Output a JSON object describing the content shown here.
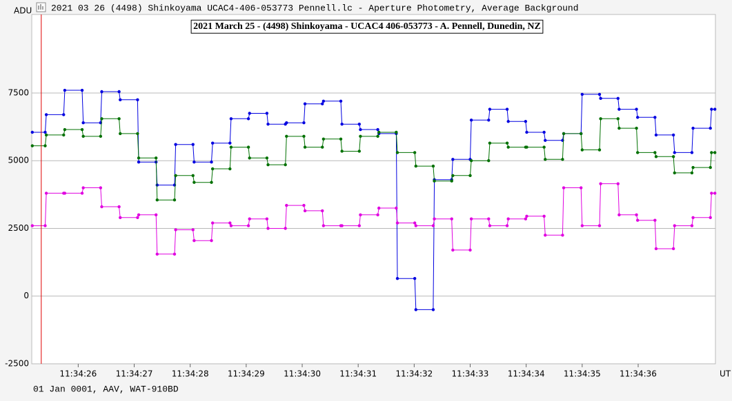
{
  "window_title": "2021 03 26 (4498) Shinkoyama UCAC4-406-053773 Pennell.lc - Aperture Photometry, Average Background",
  "footer": "01 Jan 0001, AAV, WAT-910BD",
  "chart_data": {
    "type": "line",
    "title": "2021 March 25 - (4498) Shinkoyama - UCAC4 406-053773 - A. Pennell, Dunedin, NZ",
    "y_label": "ADU",
    "x_label": "UT",
    "xlim": [
      25.17,
      37.38
    ],
    "ylim": [
      -2500,
      10400
    ],
    "xticks": [
      {
        "value": 26,
        "label": "11:34:26"
      },
      {
        "value": 27,
        "label": "11:34:27"
      },
      {
        "value": 28,
        "label": "11:34:28"
      },
      {
        "value": 29,
        "label": "11:34:29"
      },
      {
        "value": 30,
        "label": "11:34:30"
      },
      {
        "value": 31,
        "label": "11:34:31"
      },
      {
        "value": 32,
        "label": "11:34:32"
      },
      {
        "value": 33,
        "label": "11:34:33"
      },
      {
        "value": 34,
        "label": "11:34:34"
      },
      {
        "value": 35,
        "label": "11:34:35"
      },
      {
        "value": 36,
        "label": "11:34:36"
      }
    ],
    "yticks": [
      -2500,
      0,
      2500,
      5000,
      7500
    ],
    "grid": true,
    "marker_x": 25.34,
    "marker_color": "#e00000",
    "x": [
      25.18,
      25.41,
      25.43,
      25.74,
      25.76,
      26.07,
      26.09,
      26.4,
      26.42,
      26.73,
      26.75,
      27.06,
      27.08,
      27.39,
      27.41,
      27.72,
      27.74,
      28.05,
      28.07,
      28.38,
      28.4,
      28.71,
      28.73,
      29.04,
      29.06,
      29.37,
      29.39,
      29.7,
      29.72,
      30.03,
      30.05,
      30.36,
      30.38,
      30.69,
      30.71,
      31.02,
      31.04,
      31.35,
      31.37,
      31.68,
      31.7,
      32.01,
      32.03,
      32.34,
      32.36,
      32.67,
      32.69,
      33.0,
      33.02,
      33.33,
      33.35,
      33.66,
      33.68,
      33.99,
      34.01,
      34.32,
      34.34,
      34.65,
      34.67,
      34.98,
      35.0,
      35.31,
      35.33,
      35.64,
      35.66,
      35.97,
      35.99,
      36.3,
      36.32,
      36.63,
      36.65,
      36.96,
      36.98,
      37.29,
      37.31,
      37.37
    ],
    "series": [
      {
        "color": "#0000e0",
        "values": [
          6050,
          6050,
          6700,
          6700,
          7600,
          7600,
          6400,
          6400,
          7550,
          7550,
          7250,
          7250,
          4950,
          4950,
          4100,
          4100,
          5600,
          5600,
          4950,
          4950,
          5650,
          5650,
          6550,
          6550,
          6750,
          6750,
          6350,
          6350,
          6400,
          6400,
          7100,
          7100,
          7200,
          7200,
          6350,
          6350,
          6150,
          6150,
          6000,
          6000,
          650,
          650,
          -500,
          -500,
          4300,
          4300,
          5050,
          5050,
          6500,
          6500,
          6900,
          6900,
          6450,
          6450,
          6050,
          6050,
          5750,
          5750,
          6000,
          6000,
          7450,
          7450,
          7300,
          7300,
          6900,
          6900,
          6600,
          6600,
          5950,
          5950,
          5300,
          5300,
          6200,
          6200,
          6900,
          6900
        ]
      },
      {
        "color": "#007000",
        "values": [
          5550,
          5550,
          5950,
          5950,
          6150,
          6150,
          5900,
          5900,
          6550,
          6550,
          6000,
          6000,
          5100,
          5100,
          3550,
          3550,
          4450,
          4450,
          4200,
          4200,
          4700,
          4700,
          5500,
          5500,
          5100,
          5100,
          4850,
          4850,
          5900,
          5900,
          5500,
          5500,
          5800,
          5800,
          5350,
          5350,
          5900,
          5900,
          6050,
          6050,
          5300,
          5300,
          4800,
          4800,
          4250,
          4250,
          4450,
          4450,
          5000,
          5000,
          5650,
          5650,
          5500,
          5500,
          5500,
          5500,
          5050,
          5050,
          6000,
          6000,
          5400,
          5400,
          6550,
          6550,
          6200,
          6200,
          5300,
          5300,
          5150,
          5150,
          4550,
          4550,
          4750,
          4750,
          5300,
          5300
        ]
      },
      {
        "color": "#e000e0",
        "values": [
          2600,
          2600,
          3800,
          3800,
          3800,
          3800,
          4000,
          4000,
          3300,
          3300,
          2900,
          2900,
          3000,
          3000,
          1550,
          1550,
          2450,
          2450,
          2050,
          2050,
          2700,
          2700,
          2600,
          2600,
          2850,
          2850,
          2500,
          2500,
          3350,
          3350,
          3150,
          3150,
          2600,
          2600,
          2600,
          2600,
          3000,
          3000,
          3250,
          3250,
          2700,
          2700,
          2600,
          2600,
          2850,
          2850,
          1700,
          1700,
          2850,
          2850,
          2600,
          2600,
          2850,
          2850,
          2950,
          2950,
          2250,
          2250,
          4000,
          4000,
          2600,
          2600,
          4150,
          4150,
          3000,
          3000,
          2800,
          2800,
          1750,
          1750,
          2600,
          2600,
          2900,
          2900,
          3800,
          3800
        ]
      }
    ]
  }
}
